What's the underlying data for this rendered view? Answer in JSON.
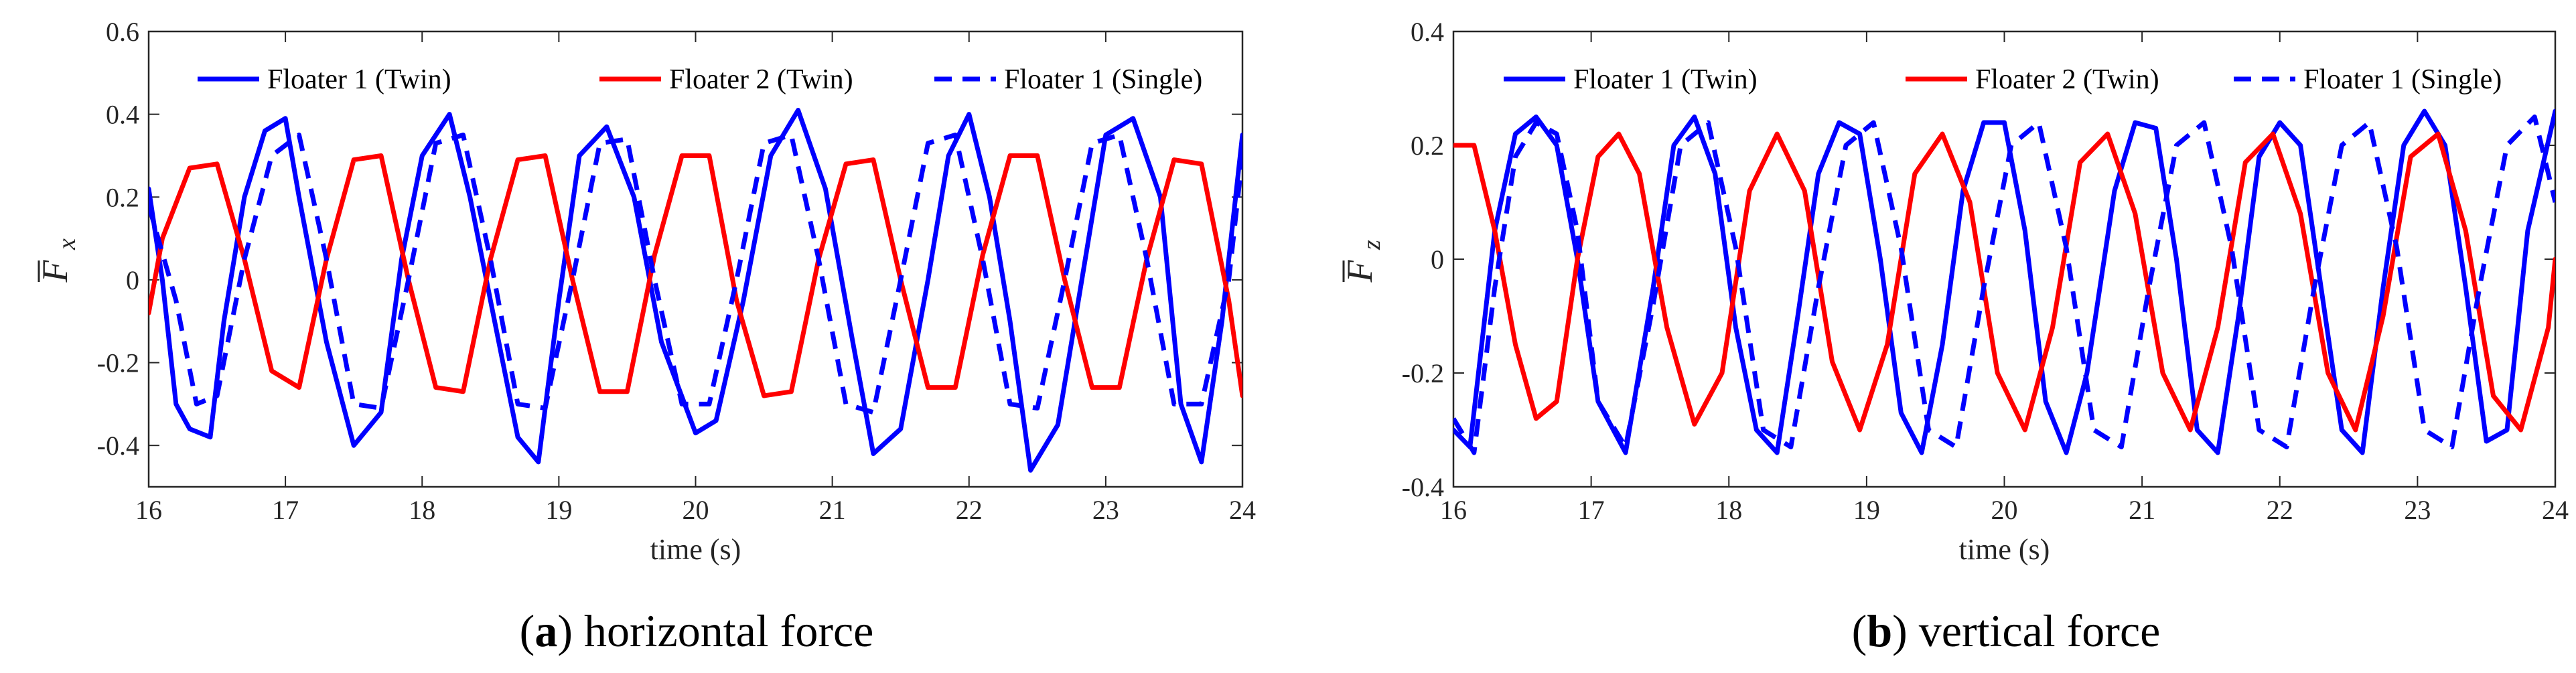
{
  "chart_data": [
    {
      "type": "line",
      "caption_letter": "a",
      "caption_text": "horizontal force",
      "xlabel": "time (s)",
      "ylabel_symbol": "F",
      "ylabel_subscript": "x",
      "xlim": [
        16,
        24
      ],
      "ylim": [
        -0.5,
        0.6
      ],
      "xticks": [
        16,
        17,
        18,
        19,
        20,
        21,
        22,
        23,
        24
      ],
      "yticks": [
        -0.4,
        -0.2,
        0,
        0.2,
        0.4,
        0.6
      ],
      "ytick_labels": [
        "-0.4",
        "-0.2",
        "0",
        "0.2",
        "0.4",
        "0.6"
      ],
      "grid": false,
      "legend_position": "top, horizontal",
      "series": [
        {
          "name": "Floater 1 (Twin)",
          "color": "#0000ff",
          "style": "solid",
          "x": [
            16,
            16.1,
            16.2,
            16.3,
            16.45,
            16.55,
            16.7,
            16.85,
            17,
            17.1,
            17.3,
            17.5,
            17.7,
            17.85,
            18,
            18.2,
            18.35,
            18.5,
            18.7,
            18.85,
            19,
            19.15,
            19.35,
            19.55,
            19.75,
            20,
            20.15,
            20.35,
            20.55,
            20.75,
            20.95,
            21.15,
            21.3,
            21.5,
            21.7,
            21.85,
            22,
            22.15,
            22.3,
            22.45,
            22.65,
            22.85,
            23,
            23.2,
            23.4,
            23.55,
            23.7,
            23.85,
            24
          ],
          "y": [
            0.22,
            0.0,
            -0.3,
            -0.36,
            -0.38,
            -0.1,
            0.2,
            0.36,
            0.39,
            0.2,
            -0.15,
            -0.4,
            -0.32,
            0.05,
            0.3,
            0.4,
            0.2,
            -0.05,
            -0.38,
            -0.44,
            -0.05,
            0.3,
            0.37,
            0.2,
            -0.15,
            -0.37,
            -0.34,
            -0.05,
            0.3,
            0.41,
            0.22,
            -0.15,
            -0.42,
            -0.36,
            0.0,
            0.3,
            0.4,
            0.2,
            -0.1,
            -0.46,
            -0.35,
            0.05,
            0.35,
            0.39,
            0.2,
            -0.3,
            -0.44,
            -0.1,
            0.35
          ]
        },
        {
          "name": "Floater 2 (Twin)",
          "color": "#ff0000",
          "style": "solid",
          "x": [
            16,
            16.1,
            16.3,
            16.5,
            16.7,
            16.9,
            17.1,
            17.3,
            17.5,
            17.7,
            17.9,
            18.1,
            18.3,
            18.5,
            18.7,
            18.9,
            19.1,
            19.3,
            19.5,
            19.7,
            19.9,
            20.1,
            20.3,
            20.5,
            20.7,
            20.9,
            21.1,
            21.3,
            21.5,
            21.7,
            21.9,
            22.1,
            22.3,
            22.5,
            22.7,
            22.9,
            23.1,
            23.3,
            23.5,
            23.7,
            23.9,
            24
          ],
          "y": [
            -0.08,
            0.1,
            0.27,
            0.28,
            0.05,
            -0.22,
            -0.26,
            0.05,
            0.29,
            0.3,
            0.0,
            -0.26,
            -0.27,
            0.05,
            0.29,
            0.3,
            0.0,
            -0.27,
            -0.27,
            0.06,
            0.3,
            0.3,
            -0.05,
            -0.28,
            -0.27,
            0.05,
            0.28,
            0.29,
            0.0,
            -0.26,
            -0.26,
            0.06,
            0.3,
            0.3,
            0.0,
            -0.26,
            -0.26,
            0.05,
            0.29,
            0.28,
            -0.05,
            -0.28
          ]
        },
        {
          "name": "Floater 1 (Single)",
          "color": "#0000ff",
          "style": "dashed",
          "x": [
            16,
            16.2,
            16.35,
            16.5,
            16.7,
            16.9,
            17.1,
            17.3,
            17.5,
            17.7,
            17.9,
            18.1,
            18.3,
            18.5,
            18.7,
            18.9,
            19.1,
            19.3,
            19.5,
            19.7,
            19.9,
            20.1,
            20.3,
            20.5,
            20.7,
            20.9,
            21.1,
            21.3,
            21.5,
            21.7,
            21.9,
            22.1,
            22.3,
            22.5,
            22.7,
            22.9,
            23.1,
            23.3,
            23.5,
            23.7,
            23.9,
            24
          ],
          "y": [
            0.18,
            -0.05,
            -0.3,
            -0.28,
            0.05,
            0.3,
            0.35,
            0.05,
            -0.3,
            -0.31,
            0.0,
            0.33,
            0.35,
            0.05,
            -0.3,
            -0.31,
            0.0,
            0.33,
            0.34,
            0.0,
            -0.3,
            -0.3,
            0.0,
            0.33,
            0.35,
            0.05,
            -0.3,
            -0.32,
            0.0,
            0.33,
            0.35,
            0.05,
            -0.3,
            -0.31,
            0.0,
            0.33,
            0.35,
            0.05,
            -0.3,
            -0.3,
            0.0,
            0.3
          ]
        }
      ]
    },
    {
      "type": "line",
      "caption_letter": "b",
      "caption_text": "vertical force",
      "xlabel": "time (s)",
      "ylabel_symbol": "F",
      "ylabel_subscript": "z",
      "xlim": [
        16,
        24
      ],
      "ylim": [
        -0.4,
        0.4
      ],
      "xticks": [
        16,
        17,
        18,
        19,
        20,
        21,
        22,
        23,
        24
      ],
      "yticks": [
        -0.4,
        -0.2,
        0,
        0.2,
        0.4
      ],
      "ytick_labels": [
        "-0.4",
        "-0.2",
        "0",
        "0.2",
        "0.4"
      ],
      "grid": false,
      "legend_position": "top, horizontal",
      "series": [
        {
          "name": "Floater 1 (Twin)",
          "color": "#0000ff",
          "style": "solid",
          "x": [
            16,
            16.12,
            16.3,
            16.45,
            16.6,
            16.75,
            16.9,
            17.05,
            17.25,
            17.45,
            17.6,
            17.75,
            17.9,
            18.05,
            18.2,
            18.35,
            18.5,
            18.65,
            18.8,
            18.95,
            19.1,
            19.25,
            19.4,
            19.55,
            19.7,
            19.85,
            20.0,
            20.15,
            20.3,
            20.45,
            20.6,
            20.8,
            20.95,
            21.1,
            21.25,
            21.4,
            21.55,
            21.7,
            21.85,
            22.0,
            22.15,
            22.3,
            22.45,
            22.6,
            22.75,
            22.9,
            23.05,
            23.2,
            23.35,
            23.5,
            23.65,
            23.8,
            24
          ],
          "y": [
            -0.3,
            -0.33,
            0.05,
            0.22,
            0.25,
            0.2,
            0.0,
            -0.25,
            -0.34,
            -0.05,
            0.2,
            0.25,
            0.15,
            -0.12,
            -0.3,
            -0.34,
            -0.1,
            0.15,
            0.24,
            0.22,
            0.0,
            -0.27,
            -0.34,
            -0.15,
            0.12,
            0.24,
            0.24,
            0.05,
            -0.25,
            -0.34,
            -0.2,
            0.12,
            0.24,
            0.23,
            0.0,
            -0.3,
            -0.34,
            -0.1,
            0.18,
            0.24,
            0.2,
            -0.05,
            -0.3,
            -0.34,
            -0.05,
            0.2,
            0.26,
            0.2,
            -0.05,
            -0.32,
            -0.3,
            0.05,
            0.26
          ]
        },
        {
          "name": "Floater 2 (Twin)",
          "color": "#ff0000",
          "style": "solid",
          "x": [
            16,
            16.15,
            16.3,
            16.45,
            16.6,
            16.75,
            16.9,
            17.05,
            17.2,
            17.35,
            17.55,
            17.75,
            17.95,
            18.15,
            18.35,
            18.55,
            18.75,
            18.95,
            19.15,
            19.35,
            19.55,
            19.75,
            19.95,
            20.15,
            20.35,
            20.55,
            20.75,
            20.95,
            21.15,
            21.35,
            21.55,
            21.75,
            21.95,
            22.15,
            22.35,
            22.55,
            22.75,
            22.95,
            23.15,
            23.35,
            23.55,
            23.75,
            23.95,
            24
          ],
          "y": [
            0.2,
            0.2,
            0.05,
            -0.15,
            -0.28,
            -0.25,
            0.0,
            0.18,
            0.22,
            0.15,
            -0.12,
            -0.29,
            -0.2,
            0.12,
            0.22,
            0.12,
            -0.18,
            -0.3,
            -0.15,
            0.15,
            0.22,
            0.1,
            -0.2,
            -0.3,
            -0.12,
            0.17,
            0.22,
            0.08,
            -0.2,
            -0.3,
            -0.12,
            0.17,
            0.22,
            0.08,
            -0.2,
            -0.3,
            -0.1,
            0.18,
            0.22,
            0.05,
            -0.24,
            -0.3,
            -0.12,
            0.0
          ]
        },
        {
          "name": "Floater 1 (Single)",
          "color": "#0000ff",
          "style": "dashed",
          "x": [
            16,
            16.15,
            16.3,
            16.45,
            16.6,
            16.75,
            16.9,
            17.05,
            17.25,
            17.45,
            17.65,
            17.85,
            18.05,
            18.25,
            18.45,
            18.65,
            18.85,
            19.05,
            19.25,
            19.45,
            19.65,
            19.85,
            20.05,
            20.25,
            20.45,
            20.65,
            20.85,
            21.05,
            21.25,
            21.45,
            21.65,
            21.85,
            22.05,
            22.25,
            22.45,
            22.65,
            22.85,
            23.05,
            23.25,
            23.45,
            23.65,
            23.85,
            24
          ],
          "y": [
            -0.28,
            -0.34,
            -0.05,
            0.18,
            0.24,
            0.22,
            0.05,
            -0.25,
            -0.33,
            -0.08,
            0.2,
            0.24,
            0.02,
            -0.3,
            -0.33,
            -0.05,
            0.2,
            0.24,
            0.02,
            -0.3,
            -0.33,
            -0.05,
            0.2,
            0.24,
            0.02,
            -0.3,
            -0.33,
            -0.05,
            0.2,
            0.24,
            0.02,
            -0.3,
            -0.33,
            -0.05,
            0.2,
            0.24,
            0.02,
            -0.3,
            -0.33,
            -0.05,
            0.2,
            0.25,
            0.1
          ]
        }
      ]
    }
  ]
}
